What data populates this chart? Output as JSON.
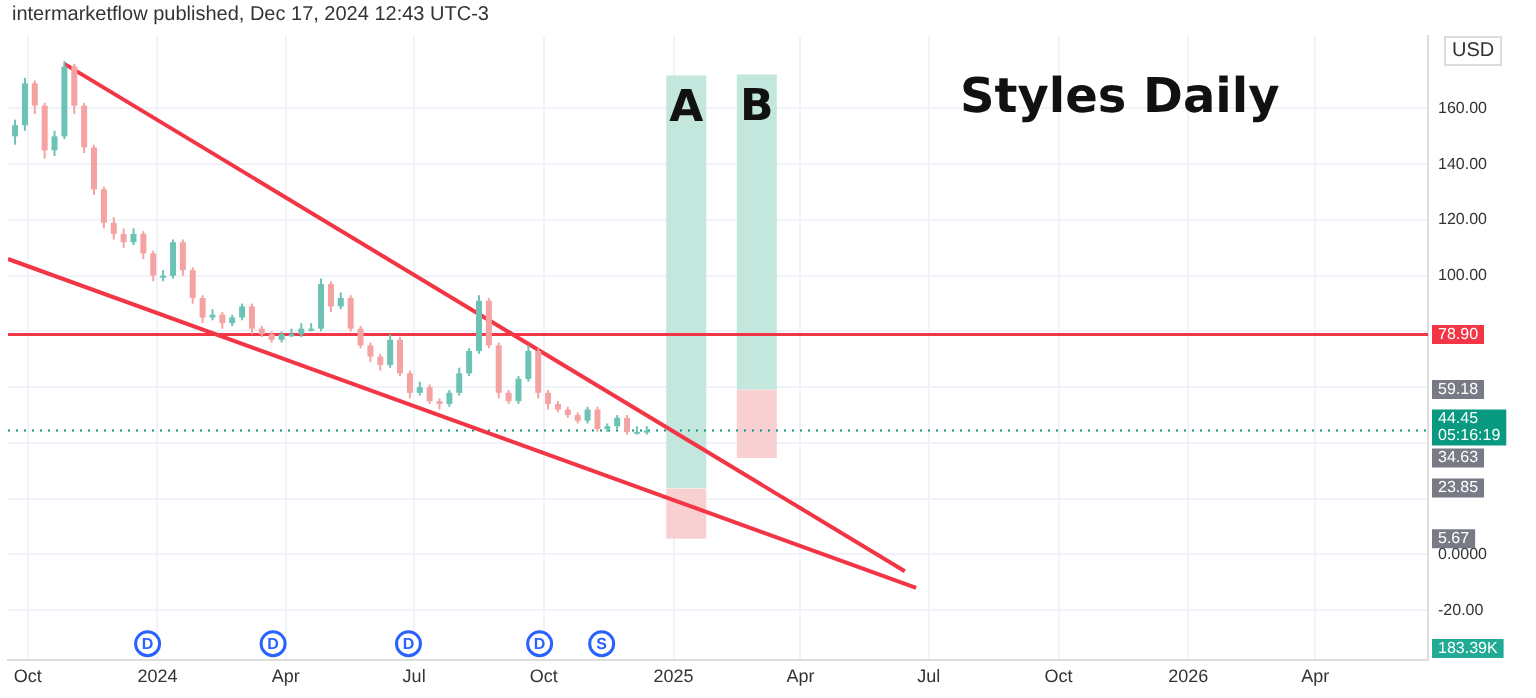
{
  "chart_data": {
    "type": "candlestick",
    "title": "Styles Daily",
    "subtitle": "intermarketflow published, Dec 17, 2024 12:43 UTC-3",
    "ylabel": "USD",
    "xlim": [
      "2023-09-17",
      "2026-06-20"
    ],
    "xticks": [
      {
        "value": "2023-10-01",
        "label": "Oct"
      },
      {
        "value": "2024-01-01",
        "label": "2024"
      },
      {
        "value": "2024-04-01",
        "label": "Apr"
      },
      {
        "value": "2024-07-01",
        "label": "Jul"
      },
      {
        "value": "2024-10-01",
        "label": "Oct"
      },
      {
        "value": "2025-01-01",
        "label": "2025"
      },
      {
        "value": "2025-04-01",
        "label": "Apr"
      },
      {
        "value": "2025-07-01",
        "label": "Jul"
      },
      {
        "value": "2025-10-01",
        "label": "Oct"
      },
      {
        "value": "2026-01-01",
        "label": "2026"
      },
      {
        "value": "2026-04-01",
        "label": "Apr"
      }
    ],
    "ylim": [
      -38,
      186
    ],
    "yticks": [
      {
        "value": 160,
        "label": "160.00"
      },
      {
        "value": 140,
        "label": "140.00"
      },
      {
        "value": 120,
        "label": "120.00"
      },
      {
        "value": 100,
        "label": "100.00"
      },
      {
        "value": 80,
        "label": null
      },
      {
        "value": 60,
        "label": null
      },
      {
        "value": 40,
        "label": null
      },
      {
        "value": 20,
        "label": null
      },
      {
        "value": 0,
        "label": "0.0000"
      },
      {
        "value": -20,
        "label": "-20.00"
      }
    ],
    "grid": true,
    "legend": false,
    "series": [
      {
        "type": "bar",
        "color": "#c3e6dd",
        "x": [
          "2025-01-10",
          "2025-03-01"
        ],
        "base": [
          23.85,
          59.18
        ],
        "values": [
          148,
          113
        ],
        "value_labels": [
          "A",
          "B"
        ]
      },
      {
        "type": "bar",
        "color": "#f9d0d1",
        "x": [
          "2025-01-10",
          "2025-03-01"
        ],
        "base": [
          5.67,
          34.63
        ],
        "values": [
          18,
          24.5
        ]
      },
      {
        "x": [
          "2023-09-22",
          "2023-09-29",
          "2023-10-06",
          "2023-10-13",
          "2023-10-20",
          "2023-10-27",
          "2023-11-03",
          "2023-11-10",
          "2023-11-17",
          "2023-11-24",
          "2023-12-01",
          "2023-12-08",
          "2023-12-15",
          "2023-12-22",
          "2023-12-29",
          "2024-01-05",
          "2024-01-12",
          "2024-01-19",
          "2024-01-26",
          "2024-02-02",
          "2024-02-09",
          "2024-02-16",
          "2024-02-23",
          "2024-03-01",
          "2024-03-08",
          "2024-03-15",
          "2024-03-22",
          "2024-03-29",
          "2024-04-05",
          "2024-04-12",
          "2024-04-19",
          "2024-04-26",
          "2024-05-03",
          "2024-05-10",
          "2024-05-17",
          "2024-05-24",
          "2024-05-31",
          "2024-06-07",
          "2024-06-14",
          "2024-06-21",
          "2024-06-28",
          "2024-07-05",
          "2024-07-12",
          "2024-07-19",
          "2024-07-26",
          "2024-08-02",
          "2024-08-09",
          "2024-08-16",
          "2024-08-23",
          "2024-08-30",
          "2024-09-06",
          "2024-09-13",
          "2024-09-20",
          "2024-09-27",
          "2024-10-04",
          "2024-10-11",
          "2024-10-18",
          "2024-10-25",
          "2024-11-01",
          "2024-11-08",
          "2024-11-15",
          "2024-11-22",
          "2024-11-29",
          "2024-12-06",
          "2024-12-13"
        ],
        "ohlc": [
          [
            150,
            156,
            147,
            154
          ],
          [
            154,
            171,
            152,
            169
          ],
          [
            169,
            170,
            158,
            161
          ],
          [
            161,
            162,
            142,
            145
          ],
          [
            145,
            152,
            143,
            150
          ],
          [
            150,
            177,
            149,
            175
          ],
          [
            175,
            176,
            158,
            161
          ],
          [
            161,
            162,
            144,
            146
          ],
          [
            146,
            147,
            129,
            131
          ],
          [
            131,
            132,
            117,
            119
          ],
          [
            119,
            121,
            113,
            115
          ],
          [
            115,
            117,
            110,
            112
          ],
          [
            112,
            117,
            111,
            115
          ],
          [
            115,
            116,
            106,
            108
          ],
          [
            108,
            109,
            98,
            100
          ],
          [
            100,
            102,
            98,
            100
          ],
          [
            100,
            113,
            99,
            112
          ],
          [
            112,
            113,
            100,
            102
          ],
          [
            102,
            103,
            90,
            92
          ],
          [
            92,
            93,
            83,
            85
          ],
          [
            85,
            88,
            84,
            86
          ],
          [
            86,
            87,
            81,
            83
          ],
          [
            83,
            86,
            82,
            85
          ],
          [
            85,
            90,
            84,
            89
          ],
          [
            89,
            90,
            79,
            81
          ],
          [
            81,
            82,
            78,
            79
          ],
          [
            79,
            80,
            76,
            77
          ],
          [
            77,
            80,
            76,
            79
          ],
          [
            79,
            81,
            78,
            79
          ],
          [
            79,
            83,
            78,
            81
          ],
          [
            81,
            83,
            80,
            81
          ],
          [
            81,
            99,
            80,
            97
          ],
          [
            97,
            98,
            87,
            89
          ],
          [
            89,
            94,
            88,
            92
          ],
          [
            92,
            93,
            80,
            81
          ],
          [
            81,
            82,
            74,
            75
          ],
          [
            75,
            76,
            69,
            71
          ],
          [
            71,
            72,
            66,
            68
          ],
          [
            68,
            79,
            67,
            77
          ],
          [
            77,
            78,
            64,
            65
          ],
          [
            65,
            66,
            56,
            58
          ],
          [
            58,
            62,
            57,
            60
          ],
          [
            60,
            61,
            54,
            55
          ],
          [
            55,
            56,
            52,
            54
          ],
          [
            54,
            59,
            53,
            58
          ],
          [
            58,
            67,
            57,
            65
          ],
          [
            65,
            74,
            64,
            73
          ],
          [
            73,
            93,
            72,
            91
          ],
          [
            91,
            92,
            74,
            75
          ],
          [
            75,
            76,
            56,
            58
          ],
          [
            58,
            59,
            54,
            55
          ],
          [
            55,
            64,
            54,
            63
          ],
          [
            63,
            75,
            62,
            73
          ],
          [
            73,
            74,
            56,
            58
          ],
          [
            58,
            59,
            52,
            54
          ],
          [
            54,
            55,
            51,
            52
          ],
          [
            52,
            53,
            49,
            50
          ],
          [
            50,
            51,
            47,
            48
          ],
          [
            48,
            53,
            47,
            52
          ],
          [
            52,
            53,
            44,
            45
          ],
          [
            45,
            47,
            44,
            46
          ],
          [
            46,
            50,
            45,
            49
          ],
          [
            49,
            50,
            43,
            44
          ],
          [
            44,
            46,
            43,
            44
          ],
          [
            44,
            46,
            43,
            44.45
          ]
        ]
      },
      {
        "type": "line",
        "color": "#f23645",
        "x": [
          "2023-10-27",
          "2025-06-14"
        ],
        "values": [
          176,
          -6
        ]
      },
      {
        "type": "line",
        "color": "#f23645",
        "x": [
          "2023-09-17",
          "2025-06-22"
        ],
        "values": [
          106,
          -12
        ]
      }
    ],
    "marker": "none",
    "line_style": "solid",
    "ref_lines": [
      {
        "axis": "y",
        "value": 78.9,
        "label": "78.90",
        "color": "#f23645"
      },
      {
        "axis": "y",
        "value": 44.45,
        "label": "44.45\n05:16:19",
        "color": "#089981",
        "line_style": "dotted"
      }
    ],
    "annotations": [
      {
        "text": "D",
        "x": "2023-12-25",
        "y": -32
      },
      {
        "text": "D",
        "x": "2024-03-23",
        "y": -32
      },
      {
        "text": "D",
        "x": "2024-06-27",
        "y": -32
      },
      {
        "text": "D",
        "x": "2024-09-28",
        "y": -32
      },
      {
        "text": "S",
        "x": "2024-11-11",
        "y": -32
      },
      {
        "text": "59.18",
        "y": 59.18
      },
      {
        "text": "34.63",
        "y": 34.63
      },
      {
        "text": "23.85",
        "y": 23.85
      },
      {
        "text": "5.67",
        "y": 5.67
      },
      "183.39K"
    ]
  }
}
